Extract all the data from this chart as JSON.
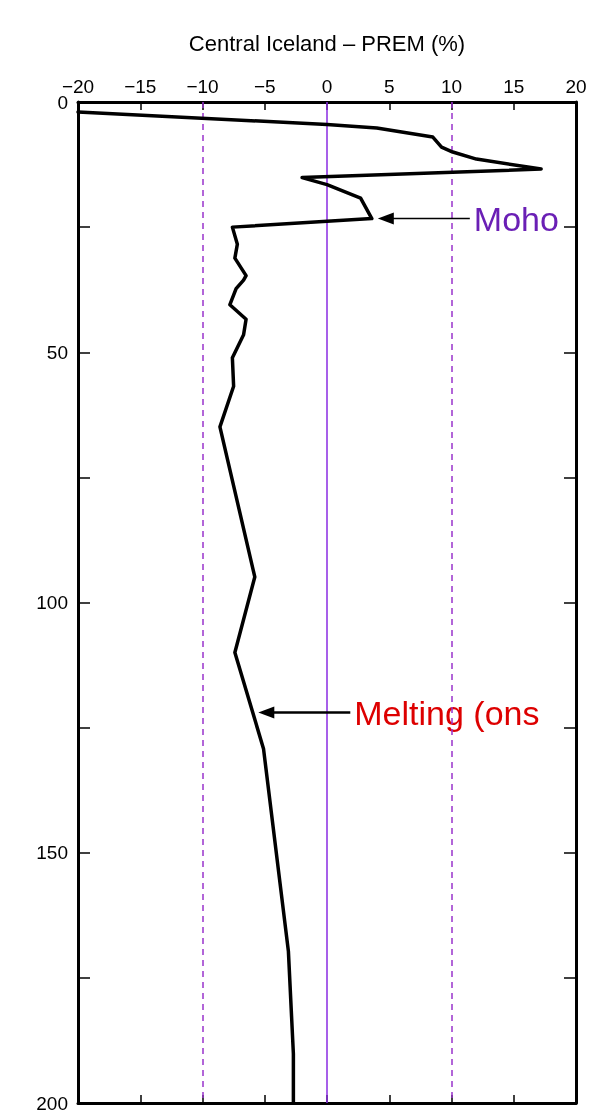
{
  "chart_data": {
    "type": "line",
    "xlabel": "Central Iceland – PREM (%)",
    "x": [
      -20,
      0,
      4,
      8.5,
      9.2,
      10.1,
      12,
      17.2,
      -2,
      0,
      2.7,
      3.6,
      -7.6,
      -7.2,
      -7.4,
      -6.5,
      -6.7,
      -7.3,
      -7.8,
      -6.5,
      -6.7,
      -7.6,
      -7.5,
      -8.6,
      -5.8,
      -7.4,
      -5.1,
      -3.1,
      -2.7,
      -2.7
    ],
    "series": [
      {
        "color": "#000000",
        "values": [
          2,
          4.5,
          5.2,
          7,
          9,
          10,
          11.4,
          13.4,
          15.1,
          16.5,
          19.2,
          23.3,
          25,
          28.4,
          31.2,
          34.7,
          35.6,
          37.3,
          40.5,
          43.4,
          46.5,
          51.1,
          56.8,
          64.9,
          94.9,
          110,
          129.2,
          169.7,
          190.2,
          200
        ]
      }
    ],
    "xlim": [
      -20,
      20
    ],
    "xticks": [
      -20,
      -15,
      -10,
      -5,
      0,
      5,
      10,
      15,
      20
    ],
    "ylim": [
      200,
      0
    ],
    "yticks": [
      0,
      {
        "value": 25,
        "label": null
      },
      50,
      {
        "value": 75,
        "label": null
      },
      100,
      {
        "value": 125,
        "label": null
      },
      150,
      {
        "value": 175,
        "label": null
      },
      200
    ],
    "ref_lines": [
      {
        "axis": "x",
        "value": -10,
        "color": "#9933cc",
        "line_style": "dashed"
      },
      {
        "axis": "x",
        "value": 0,
        "color": "#8a2be2",
        "line_style": "solid"
      },
      {
        "axis": "x",
        "value": 10,
        "color": "#9933cc",
        "line_style": "dashed"
      }
    ],
    "annotations": [
      {
        "text": "Moho",
        "x": 3.6,
        "y": 23.3
      },
      {
        "text": "Melting (ons",
        "x": -6,
        "y": 122
      }
    ],
    "line_style": "solid",
    "marker": "none",
    "grid": false
  }
}
